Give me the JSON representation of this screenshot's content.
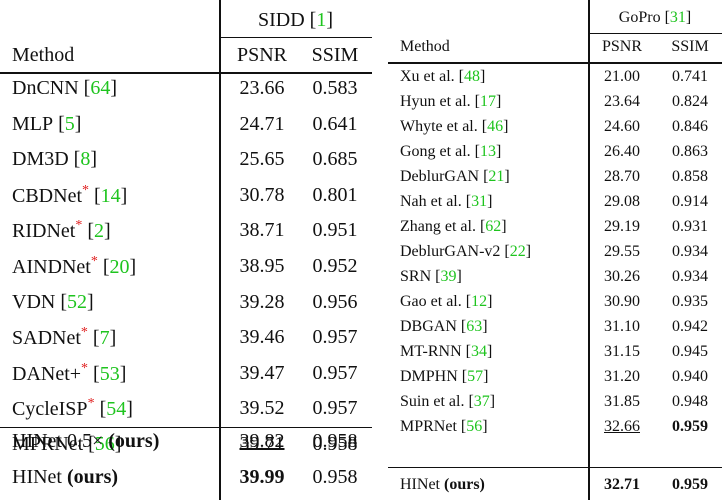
{
  "brackets": [
    "[",
    "]"
  ],
  "tables": [
    {
      "header": {
        "dataset": "SIDD",
        "cite": "1"
      },
      "columns": [
        "Method",
        "PSNR",
        "SSIM"
      ],
      "rows": [
        {
          "method": "DnCNN",
          "cite": "64",
          "psnr": "23.66",
          "ssim": "0.583"
        },
        {
          "method": "MLP",
          "cite": "5",
          "psnr": "24.71",
          "ssim": "0.641"
        },
        {
          "method": "DM3D",
          "cite": "8",
          "psnr": "25.65",
          "ssim": "0.685"
        },
        {
          "method": "CBDNet",
          "mark": "*",
          "cite": "14",
          "psnr": "30.78",
          "ssim": "0.801"
        },
        {
          "method": "RIDNet",
          "mark": "*",
          "cite": "2",
          "psnr": "38.71",
          "ssim": "0.951"
        },
        {
          "method": "AINDNet",
          "mark": "*",
          "cite": "20",
          "psnr": "38.95",
          "ssim": "0.952"
        },
        {
          "method": "VDN",
          "cite": "52",
          "psnr": "39.28",
          "ssim": "0.956"
        },
        {
          "method": "SADNet",
          "mark": "*",
          "cite": "7",
          "psnr": "39.46",
          "ssim": "0.957"
        },
        {
          "method": "DANet+",
          "mark": "*",
          "cite": "53",
          "psnr": "39.47",
          "ssim": "0.957"
        },
        {
          "method": "CycleISP",
          "mark": "*",
          "cite": "54",
          "psnr": "39.52",
          "ssim": "0.957"
        },
        {
          "method": "MPRNet",
          "cite": "56",
          "psnr": "39.71",
          "ssim": "0.958"
        },
        {
          "method": "HINet 0.5×",
          "ours": "(ours)",
          "psnr": "39.82",
          "psnr_style": "underline",
          "ssim": "0.958"
        },
        {
          "method": "HINet",
          "ours": "(ours)",
          "psnr": "39.99",
          "psnr_style": "bold",
          "ssim": "0.958"
        }
      ]
    },
    {
      "header": {
        "dataset": "GoPro",
        "cite": "31"
      },
      "columns": [
        "Method",
        "PSNR",
        "SSIM"
      ],
      "rows": [
        {
          "method": "Xu et al.",
          "cite": "48",
          "psnr": "21.00",
          "ssim": "0.741"
        },
        {
          "method": "Hyun et al.",
          "cite": "17",
          "psnr": "23.64",
          "ssim": "0.824"
        },
        {
          "method": "Whyte et al.",
          "cite": "46",
          "psnr": "24.60",
          "ssim": "0.846"
        },
        {
          "method": "Gong et al.",
          "cite": "13",
          "psnr": "26.40",
          "ssim": "0.863"
        },
        {
          "method": "DeblurGAN",
          "cite": "21",
          "psnr": "28.70",
          "ssim": "0.858"
        },
        {
          "method": "Nah et al.",
          "cite": "31",
          "psnr": "29.08",
          "ssim": "0.914"
        },
        {
          "method": "Zhang et al.",
          "cite": "62",
          "psnr": "29.19",
          "ssim": "0.931"
        },
        {
          "method": "DeblurGAN-v2",
          "cite": "22",
          "psnr": "29.55",
          "ssim": "0.934"
        },
        {
          "method": "SRN",
          "cite": "39",
          "psnr": "30.26",
          "ssim": "0.934"
        },
        {
          "method": "Gao et al.",
          "cite": "12",
          "psnr": "30.90",
          "ssim": "0.935"
        },
        {
          "method": "DBGAN",
          "cite": "63",
          "psnr": "31.10",
          "ssim": "0.942"
        },
        {
          "method": "MT-RNN",
          "cite": "34",
          "psnr": "31.15",
          "ssim": "0.945"
        },
        {
          "method": "DMPHN",
          "cite": "57",
          "psnr": "31.20",
          "ssim": "0.940"
        },
        {
          "method": "Suin et al.",
          "cite": "37",
          "psnr": "31.85",
          "ssim": "0.948"
        },
        {
          "method": "MPRNet",
          "cite": "56",
          "psnr": "32.66",
          "psnr_style": "underline",
          "ssim": "0.959",
          "ssim_style": "bold"
        },
        {
          "method": "HINet",
          "ours": "(ours)",
          "psnr": "32.71",
          "psnr_style": "bold",
          "ssim": "0.959",
          "ssim_style": "bold"
        }
      ]
    }
  ]
}
